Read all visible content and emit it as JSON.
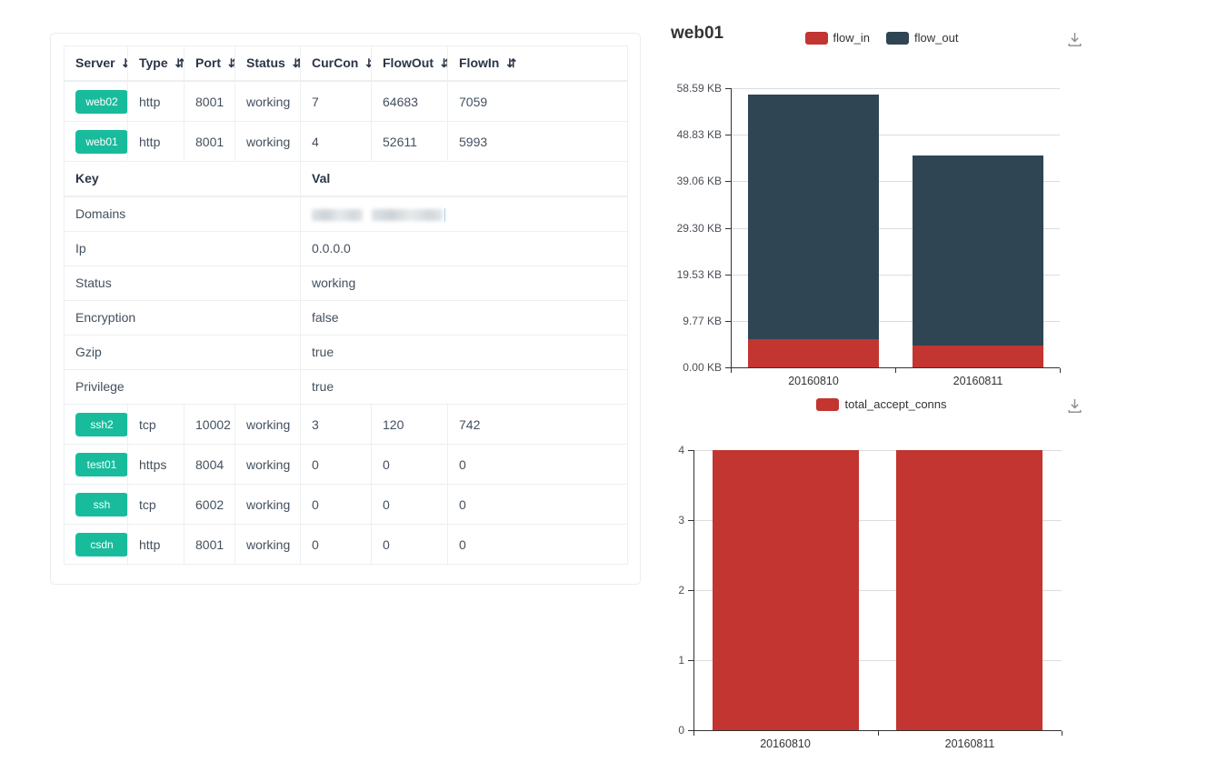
{
  "colors": {
    "accent_green": "#18bc9c",
    "bar_red": "#c23531",
    "bar_dark": "#2f4554",
    "table_border": "#ecf0f1",
    "header_text": "#2a3646",
    "cell_text": "#43505e",
    "grid_line": "#d9dce1",
    "axis_line": "#333333"
  },
  "icons": {
    "sort_glyph": "⇵",
    "download": "download-icon"
  },
  "server_table": {
    "columns": [
      {
        "label": "Server",
        "sortable": true
      },
      {
        "label": "Type",
        "sortable": true
      },
      {
        "label": "Port",
        "sortable": true
      },
      {
        "label": "Status",
        "sortable": true
      },
      {
        "label": "CurCon",
        "sortable": true
      },
      {
        "label": "FlowOut",
        "sortable": true
      },
      {
        "label": "FlowIn",
        "sortable": true
      }
    ],
    "top_rows": [
      {
        "server": "web02",
        "type": "http",
        "port": "8001",
        "status": "working",
        "curcon": "7",
        "flowout": "64683",
        "flowin": "7059"
      },
      {
        "server": "web01",
        "type": "http",
        "port": "8001",
        "status": "working",
        "curcon": "4",
        "flowout": "52611",
        "flowin": "5993"
      }
    ],
    "detail": {
      "key_header": "Key",
      "val_header": "Val",
      "rows": [
        {
          "key": "Domains",
          "val": "",
          "redacted": true
        },
        {
          "key": "Ip",
          "val": "0.0.0.0"
        },
        {
          "key": "Status",
          "val": "working"
        },
        {
          "key": "Encryption",
          "val": "false"
        },
        {
          "key": "Gzip",
          "val": "true"
        },
        {
          "key": "Privilege",
          "val": "true"
        }
      ]
    },
    "bottom_rows": [
      {
        "server": "ssh2",
        "type": "tcp",
        "port": "10002",
        "status": "working",
        "curcon": "3",
        "flowout": "120",
        "flowin": "742"
      },
      {
        "server": "test01",
        "type": "https",
        "port": "8004",
        "status": "working",
        "curcon": "0",
        "flowout": "0",
        "flowin": "0"
      },
      {
        "server": "ssh",
        "type": "tcp",
        "port": "6002",
        "status": "working",
        "curcon": "0",
        "flowout": "0",
        "flowin": "0"
      },
      {
        "server": "csdn",
        "type": "http",
        "port": "8001",
        "status": "working",
        "curcon": "0",
        "flowout": "0",
        "flowin": "0"
      }
    ]
  },
  "chart_data": [
    {
      "type": "bar",
      "stacked": true,
      "title": "web01",
      "categories": [
        "20160810",
        "20160811"
      ],
      "series": [
        {
          "name": "flow_in",
          "color": "#c23531",
          "values_bytes": [
            5993,
            4690
          ]
        },
        {
          "name": "flow_out",
          "color": "#2f4554",
          "values_bytes": [
            52611,
            40790
          ]
        }
      ],
      "y_ticks": [
        "0.00 KB",
        "9.77 KB",
        "19.53 KB",
        "29.30 KB",
        "39.06 KB",
        "48.83 KB",
        "58.59 KB"
      ],
      "y_max_bytes": 60000,
      "ylabel": "KB",
      "xlabel": "",
      "legend_position": "top-center",
      "grid": true
    },
    {
      "type": "bar",
      "stacked": false,
      "title": "",
      "categories": [
        "20160810",
        "20160811"
      ],
      "series": [
        {
          "name": "total_accept_conns",
          "color": "#c23531",
          "values": [
            4,
            4
          ]
        }
      ],
      "y_ticks": [
        "0",
        "1",
        "2",
        "3",
        "4"
      ],
      "y_max": 4,
      "ylabel": "",
      "xlabel": "",
      "legend_position": "top-center",
      "grid": true
    }
  ]
}
